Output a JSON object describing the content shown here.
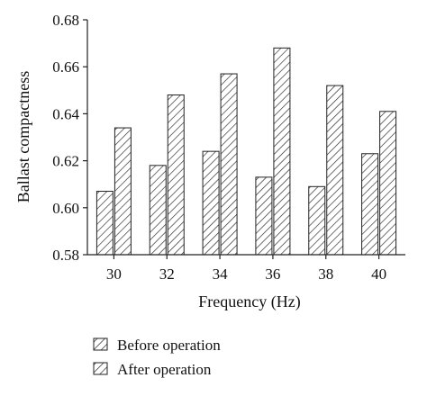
{
  "chart_data": {
    "type": "bar",
    "categories": [
      "30",
      "32",
      "34",
      "36",
      "38",
      "40"
    ],
    "series": [
      {
        "name": "Before operation",
        "values": [
          0.607,
          0.618,
          0.624,
          0.613,
          0.609,
          0.623
        ]
      },
      {
        "name": "After operation",
        "values": [
          0.634,
          0.648,
          0.657,
          0.668,
          0.652,
          0.641
        ]
      }
    ],
    "xlabel": "Frequency (Hz)",
    "ylabel": "Ballast compactness",
    "ylim": [
      0.58,
      0.68
    ],
    "yticks": [
      "0.58",
      "0.60",
      "0.62",
      "0.64",
      "0.66",
      "0.68"
    ],
    "grid": false,
    "legend_position": "bottom",
    "colors": {
      "stroke": "#222222",
      "hatch": "#222222",
      "background": "#ffffff"
    }
  }
}
